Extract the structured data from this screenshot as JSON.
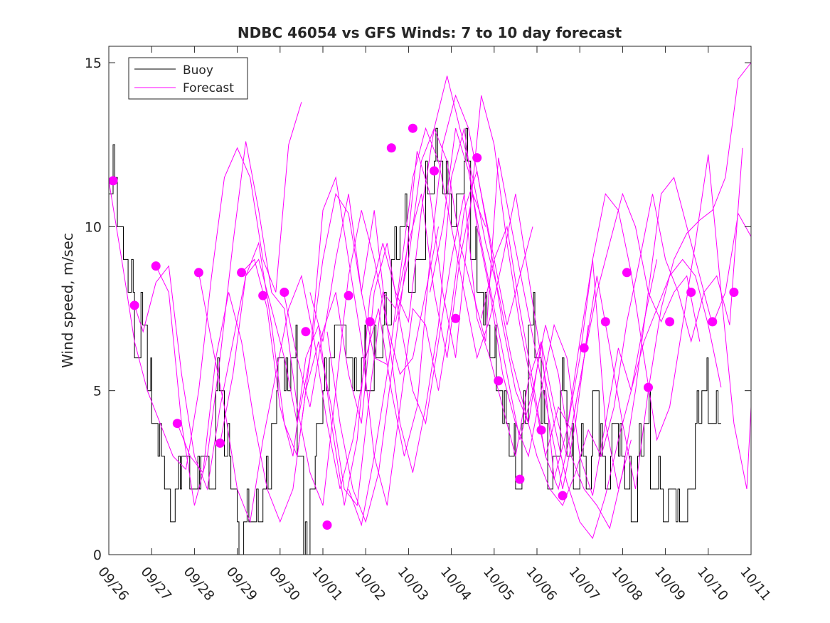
{
  "chart_data": {
    "type": "line",
    "title": "NDBC 46054 vs GFS Winds: 7 to 10 day forecast",
    "xlabel": "",
    "ylabel": "Wind speed, m/sec",
    "xlim": [
      0,
      15
    ],
    "ylim": [
      0,
      15.5
    ],
    "x_ticks": [
      0,
      1,
      2,
      3,
      4,
      5,
      6,
      7,
      8,
      9,
      10,
      11,
      12,
      13,
      14,
      15
    ],
    "x_tick_labels": [
      "09/26",
      "09/27",
      "09/28",
      "09/29",
      "09/30",
      "10/01",
      "10/02",
      "10/03",
      "10/04",
      "10/05",
      "10/06",
      "10/07",
      "10/08",
      "10/09",
      "10/10",
      "10/11"
    ],
    "y_ticks": [
      0,
      5,
      10,
      15
    ],
    "y_tick_labels": [
      "0",
      "5",
      "10",
      "15"
    ],
    "legend": {
      "position": "top-left",
      "entries": [
        "Buoy",
        "Forecast"
      ]
    },
    "colors": {
      "buoy": "#000000",
      "forecast": "#ff00ff",
      "axes": "#262626"
    },
    "buoy": {
      "name": "Buoy",
      "x": [
        0,
        0.1,
        0.2,
        0.3,
        0.45,
        0.6,
        0.75,
        0.9,
        1.0,
        1.15,
        1.3,
        1.4,
        1.55,
        1.7,
        1.85,
        2.0,
        2.15,
        2.3,
        2.5,
        2.7,
        2.85,
        3.0,
        3.15,
        3.3,
        3.45,
        3.6,
        3.8,
        3.95,
        4.1,
        4.25,
        4.4,
        4.55,
        4.7,
        4.85,
        5.0,
        5.15,
        5.3,
        5.5,
        5.7,
        5.9,
        6.0,
        6.2,
        6.4,
        6.6,
        6.8,
        7.0,
        7.2,
        7.4,
        7.6,
        7.8,
        8.0,
        8.15,
        8.3,
        8.45,
        8.6,
        8.75,
        8.9,
        9.05,
        9.2,
        9.35,
        9.5,
        9.65,
        9.8,
        9.95,
        10.1,
        10.25,
        10.4,
        10.55,
        10.7,
        10.85,
        11.0,
        11.15,
        11.3,
        11.45,
        11.6,
        11.75,
        11.9,
        12.05,
        12.2,
        12.35,
        12.5,
        12.65,
        12.8,
        12.95,
        13.1,
        13.25,
        13.4,
        13.55,
        13.7,
        13.85,
        14.0,
        14.15,
        14.3
      ],
      "values": [
        11,
        11.5,
        10,
        9,
        8,
        6,
        7,
        5,
        4,
        3,
        2,
        1,
        2,
        3,
        2,
        2,
        3,
        2,
        5,
        3,
        2,
        0,
        1,
        1,
        1,
        2,
        4,
        6,
        5,
        6,
        3,
        0,
        2,
        4,
        5,
        6,
        7,
        6,
        5,
        6,
        5,
        6,
        7,
        9,
        10,
        8,
        9,
        11,
        12,
        11,
        10,
        11,
        12,
        9,
        8,
        7,
        6,
        5,
        4,
        3,
        2,
        4,
        7,
        6,
        4,
        2,
        3,
        5,
        3,
        2,
        3,
        2,
        5,
        3,
        2,
        4,
        3,
        2,
        1,
        3,
        4,
        2,
        2,
        1,
        2,
        1,
        1,
        2,
        4,
        5,
        4,
        4,
        3
      ],
      "noise": 1,
      "noise_flip_every": 0.04
    },
    "forecast_series": [
      {
        "name": "Forecast",
        "x": [
          0.0,
          0.3,
          0.6,
          0.9,
          1.2,
          1.5,
          1.8,
          2.1,
          2.4,
          2.7,
          3.0,
          3.3,
          3.6,
          3.9,
          4.2,
          4.5
        ],
        "values": [
          11.4,
          9.0,
          6.5,
          5.0,
          4.0,
          3.0,
          2.6,
          5.0,
          8.5,
          11.5,
          12.4,
          11.5,
          9.0,
          8.0,
          12.5,
          13.8
        ]
      },
      {
        "name": "Forecast",
        "x": [
          0.6,
          0.8,
          1.1,
          1.4,
          1.7,
          2.0,
          2.3,
          2.6,
          2.9,
          3.2,
          3.5,
          3.8,
          4.1,
          4.4,
          4.7,
          5.0,
          5.3,
          5.6,
          5.9,
          6.2,
          6.5
        ],
        "values": [
          7.6,
          6.8,
          8.3,
          8.8,
          5.5,
          3.0,
          2.0,
          4.5,
          6.5,
          8.5,
          9.0,
          7.5,
          6.0,
          4.0,
          6.0,
          9.0,
          11.0,
          10.4,
          8.0,
          6.0,
          5.8
        ]
      },
      {
        "name": "Forecast",
        "x": [
          1.1,
          1.4,
          1.7,
          2.0,
          2.3,
          2.6,
          2.9,
          3.2,
          3.5,
          3.8,
          4.1,
          4.4,
          4.7,
          5.0,
          5.3,
          5.6,
          5.9,
          6.2,
          6.5,
          6.8,
          7.1,
          7.4,
          7.7
        ],
        "values": [
          8.8,
          8.0,
          4.0,
          1.5,
          3.0,
          6.0,
          9.5,
          12.6,
          10.5,
          8.0,
          7.5,
          4.5,
          2.5,
          1.5,
          5.0,
          8.5,
          10.5,
          9.0,
          7.0,
          5.5,
          6.0,
          8.0,
          10.0
        ]
      },
      {
        "name": "Forecast",
        "x": [
          1.6,
          1.9,
          2.2,
          2.5,
          2.8,
          3.1,
          3.4,
          3.7,
          4.0,
          4.3,
          4.6,
          4.9,
          5.2,
          5.5,
          5.8,
          6.1,
          6.4,
          6.7,
          7.0,
          7.3,
          7.6,
          7.9,
          8.2,
          8.5,
          8.8
        ],
        "values": [
          4.0,
          3.0,
          2.5,
          6.0,
          8.0,
          6.5,
          4.0,
          2.0,
          1.0,
          2.0,
          5.0,
          6.5,
          4.5,
          2.0,
          1.5,
          5.0,
          8.0,
          7.5,
          9.5,
          11.0,
          8.0,
          6.0,
          9.0,
          11.0,
          10.0
        ]
      },
      {
        "name": "Forecast",
        "x": [
          2.1,
          2.4,
          2.7,
          3.0,
          3.3,
          3.6,
          3.9,
          4.2,
          4.5,
          4.8,
          5.1,
          5.4,
          5.7,
          6.0,
          6.3,
          6.6,
          6.9,
          7.2,
          7.5,
          7.8,
          8.1,
          8.4,
          8.7,
          9.0,
          9.3,
          9.6,
          9.9
        ],
        "values": [
          8.6,
          6.5,
          4.5,
          2.0,
          1.0,
          3.5,
          5.5,
          7.5,
          8.5,
          6.5,
          4.0,
          2.0,
          3.5,
          6.0,
          7.5,
          5.0,
          3.0,
          4.5,
          9.0,
          12.5,
          14.0,
          13.0,
          11.0,
          9.0,
          7.0,
          8.5,
          10.0
        ]
      },
      {
        "name": "Forecast",
        "x": [
          2.6,
          2.9,
          3.2,
          3.5,
          3.8,
          4.1,
          4.4,
          4.7,
          5.0,
          5.3,
          5.6,
          5.9,
          6.2,
          6.5,
          6.8,
          7.1,
          7.4,
          7.7,
          8.0,
          8.3,
          8.6,
          8.9,
          9.2,
          9.5,
          9.8,
          10.1,
          10.4,
          10.7
        ],
        "values": [
          3.4,
          5.5,
          8.5,
          9.5,
          7.0,
          4.0,
          3.0,
          6.0,
          10.5,
          11.5,
          9.0,
          6.5,
          3.0,
          1.5,
          4.5,
          7.5,
          7.0,
          5.0,
          7.5,
          10.5,
          11.7,
          9.5,
          7.0,
          5.0,
          4.0,
          6.5,
          4.5,
          3.0
        ]
      },
      {
        "name": "Forecast",
        "x": [
          3.1,
          3.4,
          3.7,
          4.0,
          4.3,
          4.6,
          4.9,
          5.2,
          5.5,
          5.8,
          6.1,
          6.4,
          6.7,
          7.0,
          7.3,
          7.6,
          7.9,
          8.2,
          8.5,
          8.8,
          9.1,
          9.4,
          9.7,
          10.0,
          10.3,
          10.6,
          10.9,
          11.2
        ],
        "values": [
          8.6,
          9.0,
          7.5,
          4.5,
          3.0,
          6.0,
          7.0,
          4.0,
          1.5,
          3.5,
          7.9,
          9.5,
          8.0,
          7.1,
          10.5,
          13.0,
          12.0,
          9.5,
          8.0,
          6.5,
          12.1,
          10.0,
          8.0,
          6.0,
          4.0,
          2.0,
          4.0,
          7.0
        ]
      },
      {
        "name": "Forecast",
        "x": [
          4.1,
          4.4,
          4.7,
          5.0,
          5.3,
          5.6,
          5.9,
          6.2,
          6.5,
          6.8,
          7.1,
          7.4,
          7.7,
          8.0,
          8.3,
          8.6,
          8.9,
          9.2,
          9.5,
          9.8,
          10.1,
          10.4,
          10.7,
          11.0,
          11.3,
          11.6,
          11.9,
          12.2
        ],
        "values": [
          7.9,
          6.0,
          4.5,
          6.8,
          8.0,
          5.5,
          4.0,
          8.0,
          9.5,
          7.1,
          5.0,
          4.0,
          6.5,
          9.0,
          11.0,
          7.2,
          6.0,
          4.5,
          3.0,
          5.3,
          6.5,
          2.3,
          3.8,
          6.5,
          9.0,
          4.0,
          2.0,
          3.5
        ]
      },
      {
        "name": "Forecast",
        "x": [
          4.7,
          5.0,
          5.3,
          5.6,
          5.9,
          6.2,
          6.5,
          6.8,
          7.1,
          7.4,
          7.7,
          8.0,
          8.3,
          8.6,
          8.9,
          9.2,
          9.5,
          9.8,
          10.1,
          10.4,
          10.7,
          11.0,
          11.3,
          11.6,
          11.9,
          12.2,
          12.5,
          12.8
        ],
        "values": [
          8.0,
          6.5,
          9.0,
          11.0,
          8.0,
          10.5,
          7.0,
          4.0,
          2.5,
          4.5,
          7.0,
          11.5,
          13.0,
          10.0,
          8.0,
          5.5,
          4.0,
          3.0,
          5.0,
          7.0,
          6.0,
          3.0,
          1.8,
          4.0,
          6.3,
          5.0,
          7.1,
          9.0
        ]
      },
      {
        "name": "Forecast",
        "x": [
          5.1,
          5.4,
          5.7,
          6.0,
          6.3,
          6.6,
          6.9,
          7.2,
          7.5,
          7.8,
          8.1,
          8.4,
          8.7,
          9.0,
          9.3,
          9.6,
          9.9,
          10.2,
          10.5,
          10.8,
          11.1,
          11.4,
          11.7,
          12.0,
          12.3,
          12.6,
          12.9,
          13.2,
          13.5,
          13.8
        ],
        "values": [
          6.8,
          4.0,
          2.0,
          1.0,
          2.5,
          5.5,
          8.5,
          12.3,
          11.0,
          8.0,
          6.0,
          10.0,
          14.0,
          12.5,
          9.5,
          7.0,
          5.0,
          3.0,
          2.0,
          3.8,
          6.0,
          8.0,
          9.5,
          11.0,
          10.0,
          8.0,
          7.1,
          8.0,
          8.5,
          6.5
        ]
      },
      {
        "name": "Forecast",
        "x": [
          5.6,
          5.9,
          6.2,
          6.5,
          6.8,
          7.1,
          7.4,
          7.7,
          8.0,
          8.3,
          8.6,
          8.9,
          9.2,
          9.5,
          9.8,
          10.1,
          10.4,
          10.7,
          11.0,
          11.3,
          11.6,
          11.9,
          12.2,
          12.5,
          12.8,
          13.1,
          13.4,
          13.7,
          14.0,
          14.3
        ],
        "values": [
          2.0,
          0.9,
          3.0,
          5.5,
          8.5,
          11.5,
          13.0,
          12.0,
          10.0,
          8.0,
          6.0,
          7.2,
          9.0,
          11.0,
          8.5,
          6.0,
          4.0,
          2.2,
          1.0,
          0.5,
          1.8,
          3.5,
          5.0,
          6.5,
          7.5,
          8.5,
          9.0,
          8.5,
          7.0,
          5.1
        ]
      },
      {
        "name": "Forecast",
        "x": [
          6.7,
          7.0,
          7.3,
          7.6,
          7.9,
          8.2,
          8.5,
          8.8,
          9.1,
          9.4,
          9.7,
          10.0,
          10.3,
          10.6,
          10.9,
          11.2,
          11.5,
          11.8,
          12.1,
          12.4,
          12.7,
          13.0,
          13.3,
          13.6,
          13.9,
          14.2,
          14.5,
          14.8
        ],
        "values": [
          7.1,
          9.0,
          12.0,
          13.0,
          14.6,
          13.0,
          11.5,
          9.5,
          8.0,
          6.0,
          4.5,
          3.0,
          2.0,
          1.5,
          2.5,
          3.8,
          3.0,
          4.5,
          7.1,
          9.0,
          11.0,
          9.0,
          8.0,
          6.5,
          8.0,
          8.5,
          7.0,
          12.4
        ]
      },
      {
        "name": "Forecast",
        "x": [
          7.5,
          7.8,
          8.1,
          8.4,
          8.7,
          9.0,
          9.3,
          9.6,
          9.9,
          10.2,
          10.5,
          10.8,
          11.1,
          11.4,
          11.7,
          12.0,
          12.3,
          12.6,
          12.9,
          13.2,
          13.5,
          13.8,
          14.1,
          14.4,
          14.7,
          15.0
        ],
        "values": [
          8.0,
          10.0,
          13.0,
          11.7,
          9.5,
          7.5,
          5.5,
          3.5,
          5.0,
          7.0,
          5.5,
          3.0,
          2.0,
          1.5,
          0.8,
          2.5,
          5.0,
          8.0,
          11.0,
          11.5,
          10.0,
          8.5,
          7.0,
          8.0,
          10.4,
          9.7
        ]
      },
      {
        "name": "Forecast",
        "x": [
          8.7,
          9.0,
          9.3,
          9.6,
          9.9,
          10.2,
          10.5,
          10.8,
          11.1,
          11.4,
          11.7,
          12.0,
          12.3,
          12.6,
          12.9,
          13.2,
          13.5,
          13.8,
          14.1,
          14.4,
          14.7,
          15.0
        ],
        "values": [
          7.2,
          9.0,
          10.0,
          7.5,
          5.3,
          3.0,
          4.5,
          3.8,
          6.0,
          8.5,
          6.3,
          4.0,
          2.0,
          5.0,
          7.5,
          9.0,
          9.8,
          10.2,
          10.5,
          11.5,
          14.5,
          15.0
        ]
      },
      {
        "name": "Forecast",
        "x": [
          10.7,
          11.0,
          11.3,
          11.6,
          11.9,
          12.2,
          12.5,
          12.8,
          13.1,
          13.4,
          13.7,
          14.0,
          14.3,
          14.6,
          14.9,
          15.0
        ],
        "values": [
          3.8,
          6.0,
          9.0,
          11.0,
          10.5,
          8.6,
          6.0,
          3.5,
          4.5,
          7.0,
          9.5,
          12.2,
          8.0,
          4.0,
          2.0,
          4.5
        ]
      }
    ],
    "forecast_markers": {
      "name": "Forecast",
      "x": [
        0.1,
        0.6,
        1.1,
        1.6,
        2.1,
        2.6,
        3.1,
        3.6,
        4.1,
        4.6,
        5.1,
        5.6,
        6.1,
        6.6,
        7.1,
        7.6,
        8.1,
        8.6,
        9.1,
        9.6,
        10.1,
        10.6,
        11.1,
        11.6,
        12.1,
        12.6,
        13.1,
        13.6,
        14.1,
        14.6
      ],
      "values": [
        11.4,
        7.6,
        8.8,
        4.0,
        8.6,
        3.4,
        8.6,
        7.9,
        8.0,
        6.8,
        0.9,
        7.9,
        7.1,
        12.4,
        13.0,
        11.7,
        7.2,
        12.1,
        5.3,
        2.3,
        3.8,
        1.8,
        6.3,
        7.1,
        8.6,
        5.1,
        7.1,
        8.0,
        7.1,
        8.0
      ]
    }
  }
}
